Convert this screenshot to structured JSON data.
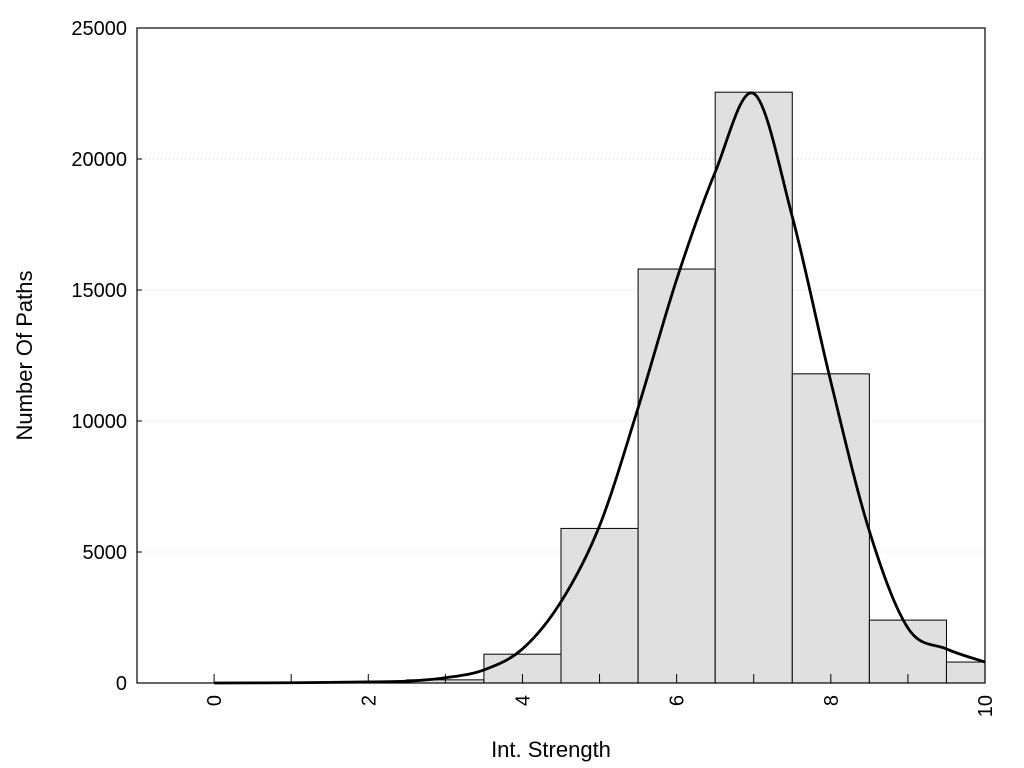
{
  "chart_data": {
    "type": "bar",
    "title": "",
    "xlabel": "Int. Strength",
    "ylabel": "Number Of Paths",
    "xlim": [
      -1,
      10
    ],
    "ylim": [
      0,
      25000
    ],
    "x_ticks": [
      0,
      2,
      4,
      6,
      8,
      10
    ],
    "y_ticks": [
      0,
      5000,
      10000,
      15000,
      20000,
      25000
    ],
    "grid": {
      "y": true,
      "x": false,
      "style": "dotted"
    },
    "bar_width": 1,
    "bars": [
      {
        "x": 0,
        "value": 0
      },
      {
        "x": 1,
        "value": 0
      },
      {
        "x": 2,
        "value": 0
      },
      {
        "x": 3,
        "value": 120
      },
      {
        "x": 4,
        "value": 1100
      },
      {
        "x": 5,
        "value": 5900
      },
      {
        "x": 6,
        "value": 15800
      },
      {
        "x": 7,
        "value": 22550
      },
      {
        "x": 8,
        "value": 11800
      },
      {
        "x": 9,
        "value": 2400
      },
      {
        "x": 10,
        "value": 800
      }
    ],
    "curve": {
      "x": [
        0,
        1,
        2,
        2.5,
        3,
        3.5,
        4,
        4.5,
        5,
        5.5,
        6,
        6.5,
        7,
        7.5,
        8,
        8.5,
        9,
        9.5,
        10
      ],
      "y": [
        0,
        10,
        40,
        70,
        200,
        500,
        1300,
        3100,
        6000,
        10500,
        15400,
        19500,
        22500,
        17800,
        11500,
        5800,
        2100,
        1300,
        800
      ]
    },
    "colors": {
      "bar_fill": "#e0e0e0",
      "bar_stroke": "#000000",
      "curve": "#000000",
      "grid": "#c8c8c8"
    }
  }
}
